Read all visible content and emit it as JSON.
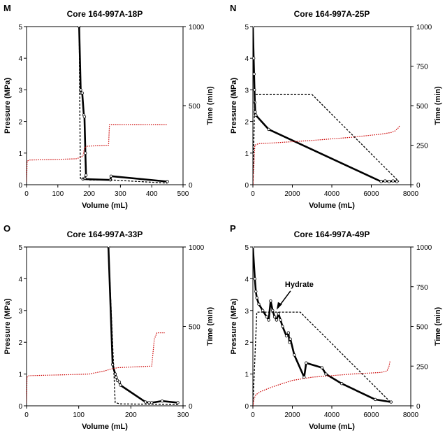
{
  "chart_data": [
    {
      "type": "line",
      "panel_label": "M",
      "title": "Core 164-997A-18P",
      "xlabel": "Volume (mL)",
      "ylabel": "Pressure (MPa)",
      "y2label": "Time (min)",
      "xlim": [
        0,
        500
      ],
      "ylim": [
        0,
        5
      ],
      "y2lim": [
        0,
        1000
      ],
      "xticks": [
        "0",
        "100",
        "200",
        "300",
        "400",
        "500"
      ],
      "yticks": [
        "0",
        "1",
        "2",
        "3",
        "4",
        "5"
      ],
      "y2ticks": [
        "0",
        "500",
        "1000"
      ],
      "series": [
        {
          "role": "pressure",
          "color": "#000000",
          "style": "solid",
          "x": [
            168,
            173,
            175,
            178,
            183,
            185,
            188,
            190,
            186,
            180,
            268,
            270,
            450
          ],
          "y": [
            5.0,
            3.0,
            2.9,
            2.9,
            2.2,
            2.15,
            1.0,
            0.3,
            0.2,
            0.18,
            0.15,
            0.27,
            0.1
          ]
        },
        {
          "role": "time",
          "color": "#000000",
          "style": "dashed",
          "axis": "right",
          "x": [
            168,
            172,
            200,
            270,
            450
          ],
          "y": [
            1000,
            40,
            30,
            30,
            10
          ]
        },
        {
          "role": "volume",
          "color": "#cc0000",
          "style": "dotted",
          "axis": "left",
          "x": [
            0,
            2,
            10,
            100,
            160,
            170,
            175,
            180,
            185,
            190,
            195,
            262,
            265,
            270,
            280,
            450
          ],
          "y": [
            0.1,
            0.75,
            0.78,
            0.8,
            0.82,
            0.86,
            0.88,
            0.9,
            1.15,
            1.2,
            1.22,
            1.25,
            1.9,
            1.9,
            1.9,
            1.9
          ]
        }
      ]
    },
    {
      "type": "line",
      "panel_label": "N",
      "title": "Core 164-997A-25P",
      "xlabel": "Volume (mL)",
      "ylabel": "Pressure (MPa)",
      "y2label": "Time (min)",
      "xlim": [
        0,
        8000
      ],
      "ylim": [
        0,
        5
      ],
      "y2lim": [
        0,
        1000
      ],
      "xticks": [
        "0",
        "2000",
        "4000",
        "6000",
        "8000"
      ],
      "yticks": [
        "0",
        "1",
        "2",
        "3",
        "4",
        "5"
      ],
      "y2ticks": [
        "0",
        "250",
        "500",
        "750",
        "1000"
      ],
      "series": [
        {
          "role": "pressure",
          "color": "#000000",
          "style": "solid",
          "x": [
            0,
            40,
            60,
            80,
            100,
            120,
            150,
            800,
            6500,
            6700,
            6900,
            7100,
            7300
          ],
          "y": [
            5.0,
            4.0,
            3.5,
            3.0,
            2.6,
            2.3,
            2.2,
            1.75,
            0.1,
            0.12,
            0.1,
            0.12,
            0.1
          ]
        },
        {
          "role": "time",
          "color": "#000000",
          "style": "dashed",
          "axis": "right",
          "x": [
            0,
            100,
            3000,
            7400
          ],
          "y": [
            0,
            570,
            570,
            20
          ]
        },
        {
          "role": "volume",
          "color": "#cc0000",
          "style": "dotted",
          "axis": "left",
          "x": [
            0,
            50,
            100,
            300,
            1000,
            3000,
            5000,
            6500,
            7000,
            7200,
            7350,
            7450
          ],
          "y": [
            0.0,
            0.6,
            1.25,
            1.3,
            1.32,
            1.4,
            1.5,
            1.6,
            1.65,
            1.7,
            1.78,
            1.88
          ]
        }
      ]
    },
    {
      "type": "line",
      "panel_label": "O",
      "title": "Core 164-997A-33P",
      "xlabel": "Volume (mL)",
      "ylabel": "Pressure (MPa)",
      "y2label": "Time (min)",
      "xlim": [
        0,
        300
      ],
      "ylim": [
        0,
        5
      ],
      "y2lim": [
        0,
        1000
      ],
      "xticks": [
        "0",
        "100",
        "200",
        "300"
      ],
      "yticks": [
        "0",
        "1",
        "2",
        "3",
        "4",
        "5"
      ],
      "y2ticks": [
        "0",
        "500",
        "1000"
      ],
      "series": [
        {
          "role": "pressure",
          "color": "#000000",
          "style": "solid",
          "x": [
            157,
            165,
            170,
            172,
            174,
            178,
            180,
            228,
            235,
            240,
            260,
            290
          ],
          "y": [
            5.0,
            1.3,
            1.0,
            0.9,
            0.8,
            0.75,
            0.65,
            0.12,
            0.1,
            0.1,
            0.15,
            0.1
          ]
        },
        {
          "role": "time",
          "color": "#000000",
          "style": "dashed",
          "axis": "right",
          "x": [
            157,
            170,
            180,
            240,
            290
          ],
          "y": [
            1000,
            20,
            12,
            10,
            8
          ]
        },
        {
          "role": "volume",
          "color": "#cc0000",
          "style": "dotted",
          "axis": "left",
          "x": [
            0,
            1,
            5,
            80,
            120,
            150,
            160,
            175,
            200,
            240,
            245,
            250,
            265
          ],
          "y": [
            0.1,
            0.9,
            0.95,
            0.98,
            1.0,
            1.1,
            1.15,
            1.2,
            1.22,
            1.25,
            2.1,
            2.3,
            2.3
          ]
        }
      ]
    },
    {
      "type": "line",
      "panel_label": "P",
      "title": "Core 164-997A-49P",
      "xlabel": "Volume (mL)",
      "ylabel": "Pressure (MPa)",
      "y2label": "Time (min)",
      "xlim": [
        0,
        8000
      ],
      "ylim": [
        0,
        5
      ],
      "y2lim": [
        0,
        1000
      ],
      "xticks": [
        "0",
        "2000",
        "4000",
        "6000",
        "8000"
      ],
      "yticks": [
        "0",
        "1",
        "2",
        "3",
        "4",
        "5"
      ],
      "y2ticks": [
        "0",
        "250",
        "500",
        "750",
        "1000"
      ],
      "annotation": {
        "text": "Hydrate",
        "x": 1200,
        "y": 3.0
      },
      "series": [
        {
          "role": "pressure",
          "color": "#000000",
          "style": "solid",
          "x": [
            0,
            100,
            150,
            200,
            300,
            500,
            700,
            800,
            900,
            1000,
            1100,
            1200,
            1300,
            1400,
            1500,
            1700,
            1800,
            1850,
            1900,
            2100,
            2600,
            2700,
            3500,
            3700,
            4500,
            6200,
            7000
          ],
          "y": [
            5.0,
            4.0,
            3.6,
            3.4,
            3.2,
            3.0,
            2.8,
            2.7,
            3.3,
            3.0,
            2.8,
            2.7,
            2.9,
            2.7,
            2.5,
            2.2,
            2.3,
            2.0,
            2.1,
            1.6,
            0.9,
            1.35,
            1.2,
            1.0,
            0.7,
            0.2,
            0.12
          ]
        },
        {
          "role": "time",
          "color": "#000000",
          "style": "dashed",
          "axis": "right",
          "x": [
            0,
            200,
            2400,
            7000
          ],
          "y": [
            0,
            590,
            590,
            20
          ]
        },
        {
          "role": "volume",
          "color": "#cc0000",
          "style": "dotted",
          "axis": "left",
          "x": [
            0,
            50,
            150,
            400,
            1000,
            1500,
            2000,
            3000,
            5000,
            6500,
            6800,
            6900,
            6950
          ],
          "y": [
            0.0,
            0.2,
            0.35,
            0.45,
            0.6,
            0.7,
            0.8,
            0.9,
            1.0,
            1.05,
            1.1,
            1.25,
            1.4
          ]
        }
      ]
    }
  ]
}
